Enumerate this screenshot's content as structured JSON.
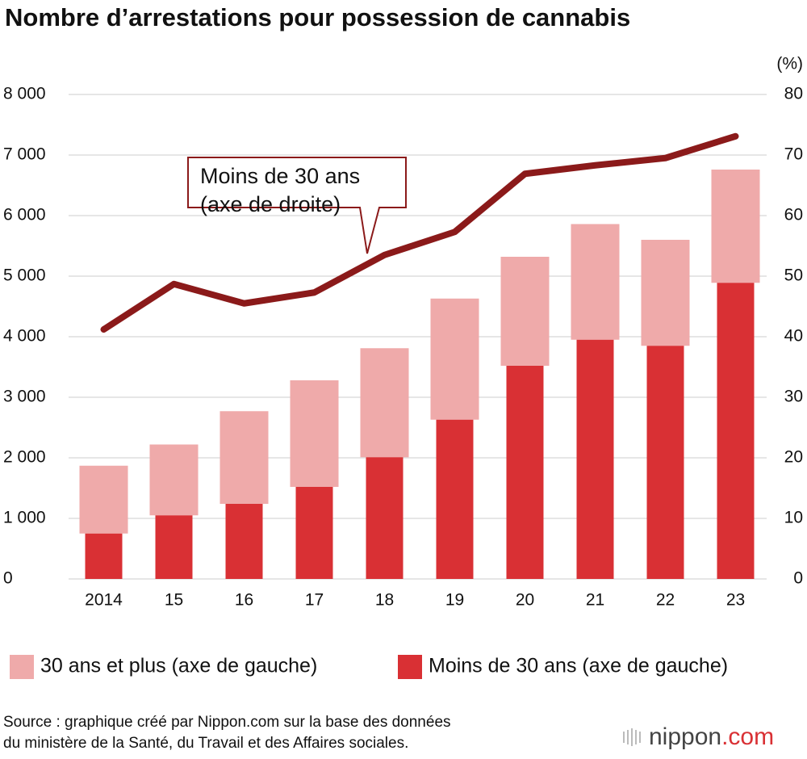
{
  "chart_data": {
    "type": "bar-line",
    "title": "Nombre d’arrestations pour possession de cannabis",
    "categories": [
      "2014",
      "15",
      "16",
      "17",
      "18",
      "19",
      "20",
      "21",
      "22",
      "23"
    ],
    "series": [
      {
        "name": "Moins de 30 ans (axe de gauche)",
        "color": "#d93034",
        "kind": "bar",
        "values": [
          750,
          1050,
          1240,
          1520,
          2010,
          2630,
          3520,
          3950,
          3850,
          4890
        ]
      },
      {
        "name": "30 ans et plus (axe de gauche)",
        "color": "#efaaaa",
        "kind": "bar",
        "values": [
          1120,
          1170,
          1530,
          1760,
          1800,
          2000,
          1800,
          1910,
          1750,
          1870
        ]
      },
      {
        "name": "Moins de 30 ans",
        "color": "#8b1a1a",
        "kind": "line",
        "axis": "y2",
        "values": [
          41.2,
          48.7,
          45.5,
          47.3,
          53.5,
          57.3,
          66.9,
          68.3,
          69.5,
          73.1
        ]
      }
    ],
    "ylim": [
      0,
      8000
    ],
    "yticks": [
      0,
      {
        "value": 1000,
        "label": "1 000"
      },
      {
        "value": 2000,
        "label": "2 000"
      },
      {
        "value": 3000,
        "label": "3 000"
      },
      {
        "value": 4000,
        "label": "4 000"
      },
      {
        "value": 5000,
        "label": "5 000"
      },
      {
        "value": 6000,
        "label": "6 000"
      },
      {
        "value": 7000,
        "label": "7 000"
      },
      {
        "value": 8000,
        "label": "8 000"
      }
    ],
    "y2lim": [
      0,
      80
    ],
    "y2ticks": [
      0,
      10,
      20,
      30,
      40,
      50,
      60,
      70,
      80
    ],
    "y2_unit": "(%)",
    "annotation": [
      "Moins de 30 ans",
      "(axe de droite)"
    ],
    "grid": true,
    "source": [
      "Source : graphique créé par Nippon.com sur la base des données",
      "du ministère de la Santé, du Travail et des Affaires sociales."
    ],
    "logo": [
      "nippon",
      ".com"
    ]
  }
}
